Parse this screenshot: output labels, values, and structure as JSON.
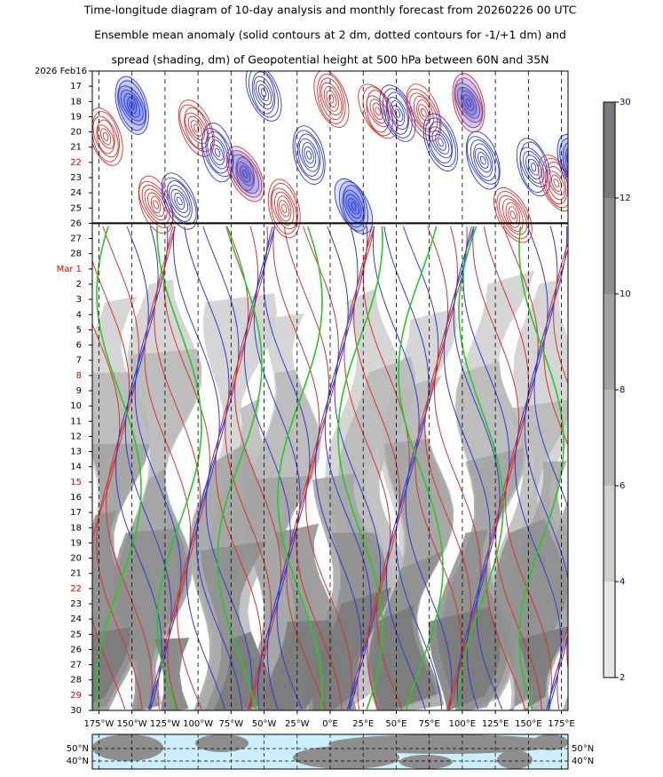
{
  "chart_data": {
    "type": "hovmoller",
    "title": [
      "Time-longitude diagram of 10-day analysis and monthly forecast from 20260226 00 UTC",
      "Ensemble mean anomaly (solid contours at 2 dm, dotted contours for -1/+1 dm) and",
      "spread (shading, dm) of Geopotential height at 500 hPa between 60N and 35N"
    ],
    "xlim": [
      -180,
      180
    ],
    "xticks": [
      {
        "value": -175,
        "label": "175°W"
      },
      {
        "value": -150,
        "label": "150°W"
      },
      {
        "value": -125,
        "label": "125°W"
      },
      {
        "value": -100,
        "label": "100°W"
      },
      {
        "value": -75,
        "label": "75°W"
      },
      {
        "value": -50,
        "label": "50°W"
      },
      {
        "value": -25,
        "label": "25°W"
      },
      {
        "value": 0,
        "label": "0°E"
      },
      {
        "value": 25,
        "label": "25°E"
      },
      {
        "value": 50,
        "label": "50°E"
      },
      {
        "value": 75,
        "label": "75°E"
      },
      {
        "value": 100,
        "label": "100°E"
      },
      {
        "value": 125,
        "label": "125°E"
      },
      {
        "value": 150,
        "label": "150°E"
      },
      {
        "value": 175,
        "label": "175°E"
      }
    ],
    "categories": [
      "2026 Feb16",
      "17",
      "18",
      "19",
      "20",
      "21",
      "22",
      "23",
      "24",
      "25",
      "26",
      "27",
      "28",
      "Mar 1",
      "2",
      "3",
      "4",
      "5",
      "6",
      "7",
      "8",
      "9",
      "10",
      "11",
      "12",
      "13",
      "14",
      "15",
      "16",
      "17",
      "18",
      "19",
      "20",
      "21",
      "22",
      "23",
      "24",
      "25",
      "26",
      "27",
      "28",
      "29",
      "30"
    ],
    "label_colors": [
      "#000",
      "#000",
      "#000",
      "#000",
      "#000",
      "#000",
      "#e00000",
      "#000",
      "#000",
      "#000",
      "#000",
      "#000",
      "#000",
      "#e00000",
      "#000",
      "#000",
      "#000",
      "#000",
      "#000",
      "#000",
      "#e00000",
      "#000",
      "#000",
      "#000",
      "#000",
      "#000",
      "#000",
      "#e00000",
      "#000",
      "#000",
      "#000",
      "#000",
      "#000",
      "#000",
      "#e00000",
      "#000",
      "#000",
      "#000",
      "#000",
      "#000",
      "#000",
      "#e00000",
      "#000"
    ],
    "colorbar": {
      "ticks": [
        2,
        4,
        6,
        8,
        10,
        12,
        30
      ],
      "colors": [
        "#e6e6e6",
        "#cfcfcf",
        "#b9b9b9",
        "#a3a3a3",
        "#8e8e8e",
        "#797979"
      ]
    },
    "map_labels": [
      "50°N",
      "40°N"
    ]
  }
}
